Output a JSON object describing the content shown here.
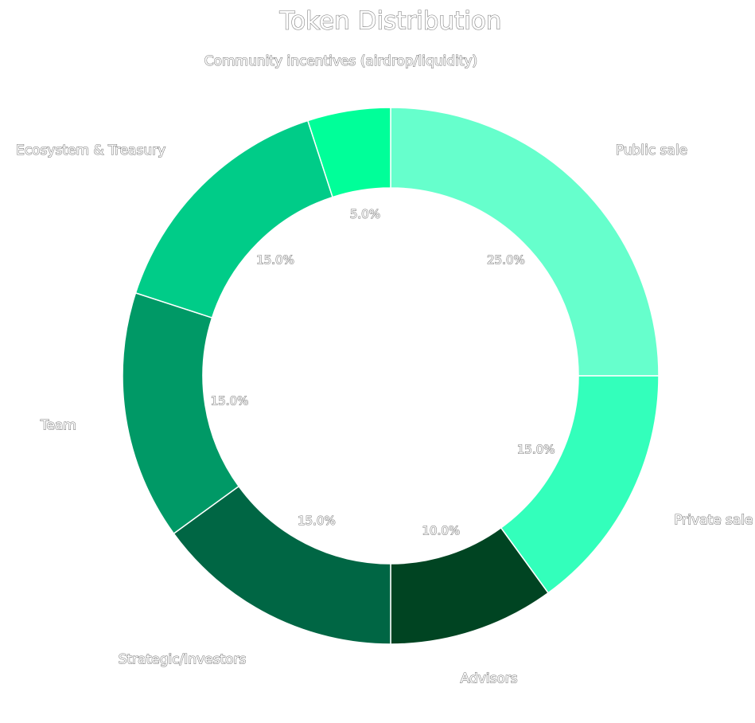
{
  "chart_data": {
    "type": "donut",
    "title": "Token Distribution",
    "categories": [
      "Public sale",
      "Private sale",
      "Advisors",
      "Strategic/Investors",
      "Team",
      "Ecosystem & Treasury",
      "Community incentives (airdrop/liquidity)"
    ],
    "values": [
      25,
      15,
      10,
      15,
      15,
      15,
      5
    ],
    "value_labels": [
      "25.0%",
      "15.0%",
      "10.0%",
      "15.0%",
      "15.0%",
      "15.0%",
      "5.0%"
    ],
    "colors": [
      "#66ffcc",
      "#33ffbb",
      "#004422",
      "#006644",
      "#009966",
      "#00cc88",
      "#00ff99"
    ]
  }
}
